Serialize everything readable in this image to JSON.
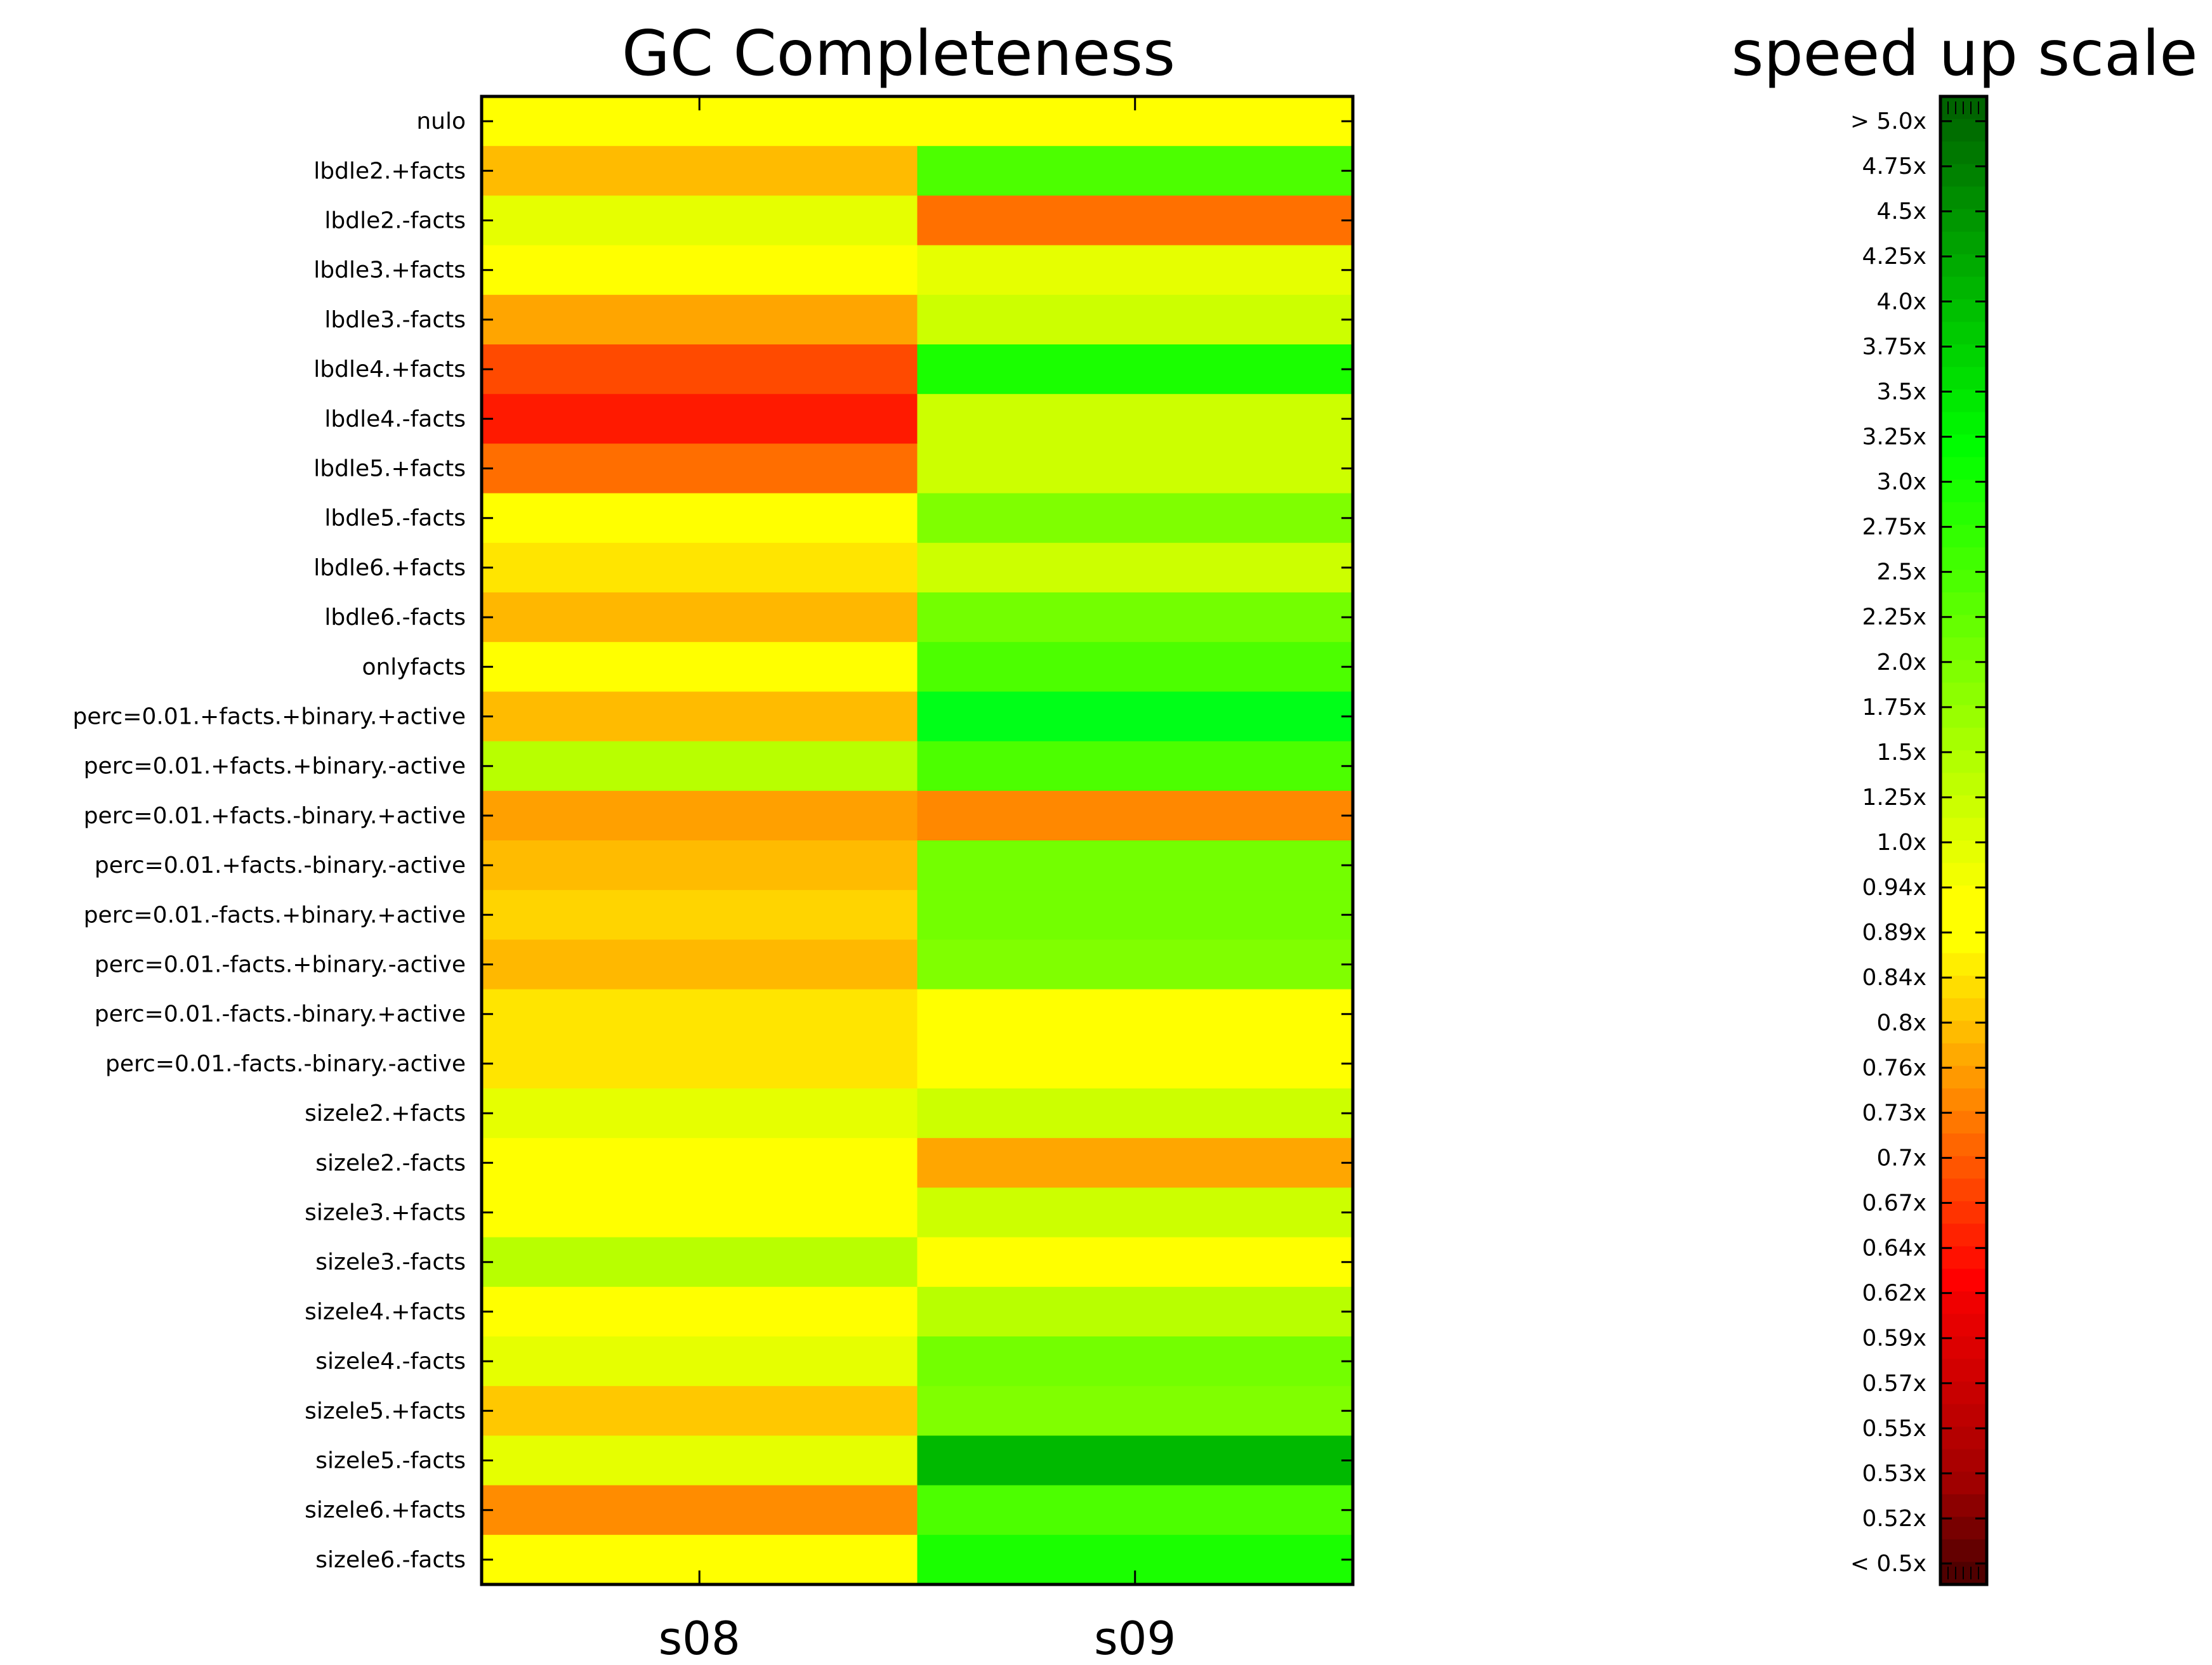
{
  "chart_data": [
    {
      "type": "heatmap",
      "title": "GC Completeness",
      "x": [
        "s08",
        "s09"
      ],
      "y": [
        "nulo",
        "lbdle2.+facts",
        "lbdle2.-facts",
        "lbdle3.+facts",
        "lbdle3.-facts",
        "lbdle4.+facts",
        "lbdle4.-facts",
        "lbdle5.+facts",
        "lbdle5.-facts",
        "lbdle6.+facts",
        "lbdle6.-facts",
        "onlyfacts",
        "perc=0.01.+facts.+binary.+active",
        "perc=0.01.+facts.+binary.-active",
        "perc=0.01.+facts.-binary.+active",
        "perc=0.01.+facts.-binary.-active",
        "perc=0.01.-facts.+binary.+active",
        "perc=0.01.-facts.+binary.-active",
        "perc=0.01.-facts.-binary.+active",
        "perc=0.01.-facts.-binary.-active",
        "sizele2.+facts",
        "sizele2.-facts",
        "sizele3.+facts",
        "sizele3.-facts",
        "sizele4.+facts",
        "sizele4.-facts",
        "sizele5.+facts",
        "sizele5.-facts",
        "sizele6.+facts",
        "sizele6.-facts"
      ],
      "colors": [
        [
          "#ffff00",
          "#ffff00"
        ],
        [
          "#ffbb00",
          "#4cff00"
        ],
        [
          "#e6ff00",
          "#ff7000"
        ],
        [
          "#ffff00",
          "#e6ff00"
        ],
        [
          "#ffa500",
          "#ccff00"
        ],
        [
          "#ff4a00",
          "#1aff00"
        ],
        [
          "#ff1a00",
          "#ccff00"
        ],
        [
          "#ff6e00",
          "#ccff00"
        ],
        [
          "#ffff00",
          "#7fff00"
        ],
        [
          "#ffe500",
          "#ccff00"
        ],
        [
          "#ffb700",
          "#73ff00"
        ],
        [
          "#ffff00",
          "#4cff00"
        ],
        [
          "#ffbb00",
          "#00ff18"
        ],
        [
          "#b8ff00",
          "#4cff00"
        ],
        [
          "#ffa000",
          "#ff8800"
        ],
        [
          "#ffbb00",
          "#73ff00"
        ],
        [
          "#ffd400",
          "#73ff00"
        ],
        [
          "#ffb800",
          "#80ff00"
        ],
        [
          "#ffe500",
          "#ffff00"
        ],
        [
          "#ffe500",
          "#ffff00"
        ],
        [
          "#e6ff00",
          "#ccff00"
        ],
        [
          "#ffff00",
          "#ffa600"
        ],
        [
          "#ffff00",
          "#ccff00"
        ],
        [
          "#b8ff00",
          "#ffff00"
        ],
        [
          "#ffff00",
          "#b8ff00"
        ],
        [
          "#e6ff00",
          "#73ff00"
        ],
        [
          "#ffc800",
          "#80ff00"
        ],
        [
          "#e6ff00",
          "#00b900"
        ],
        [
          "#ff8c00",
          "#4cff00"
        ],
        [
          "#ffff00",
          "#1aff00"
        ]
      ]
    },
    {
      "type": "colorbar",
      "title": "speed up scale",
      "tick_labels": [
        "> 5.0x",
        "4.75x",
        "4.5x",
        "4.25x",
        "4.0x",
        "3.75x",
        "3.5x",
        "3.25x",
        "3.0x",
        "2.75x",
        "2.5x",
        "2.25x",
        "2.0x",
        "1.75x",
        "1.5x",
        "1.25x",
        "1.0x",
        "0.94x",
        "0.89x",
        "0.84x",
        "0.8x",
        "0.76x",
        "0.73x",
        "0.7x",
        "0.67x",
        "0.64x",
        "0.62x",
        "0.59x",
        "0.57x",
        "0.55x",
        "0.53x",
        "0.52x",
        "< 0.5x"
      ],
      "colors_top_to_bottom": [
        "#006400",
        "#006e00",
        "#007800",
        "#008200",
        "#008d00",
        "#009700",
        "#00a100",
        "#00ab00",
        "#00b500",
        "#00c000",
        "#00ca00",
        "#00d400",
        "#00de00",
        "#00e900",
        "#00f300",
        "#00fd00",
        "#0cff00",
        "#1aff00",
        "#26ff00",
        "#33ff00",
        "#40ff00",
        "#4cff00",
        "#59ff00",
        "#66ff00",
        "#73ff00",
        "#80ff00",
        "#8cff00",
        "#99ff00",
        "#a6ff00",
        "#b3ff00",
        "#bfff00",
        "#ccff00",
        "#d9ff00",
        "#e6ff00",
        "#f2ff00",
        "#ffff00",
        "#ffff00",
        "#ffff00",
        "#ffee00",
        "#ffdd00",
        "#ffcc00",
        "#ffbb00",
        "#ffaa00",
        "#ff9900",
        "#ff8800",
        "#ff7700",
        "#ff6600",
        "#ff5500",
        "#ff4400",
        "#ff3300",
        "#ff2200",
        "#ff1100",
        "#ff0000",
        "#f00000",
        "#e60000",
        "#dc0000",
        "#d20000",
        "#c80000",
        "#be0000",
        "#b40000",
        "#aa0000",
        "#a00000",
        "#8c0000",
        "#780000",
        "#640000",
        "#500000"
      ]
    }
  ]
}
